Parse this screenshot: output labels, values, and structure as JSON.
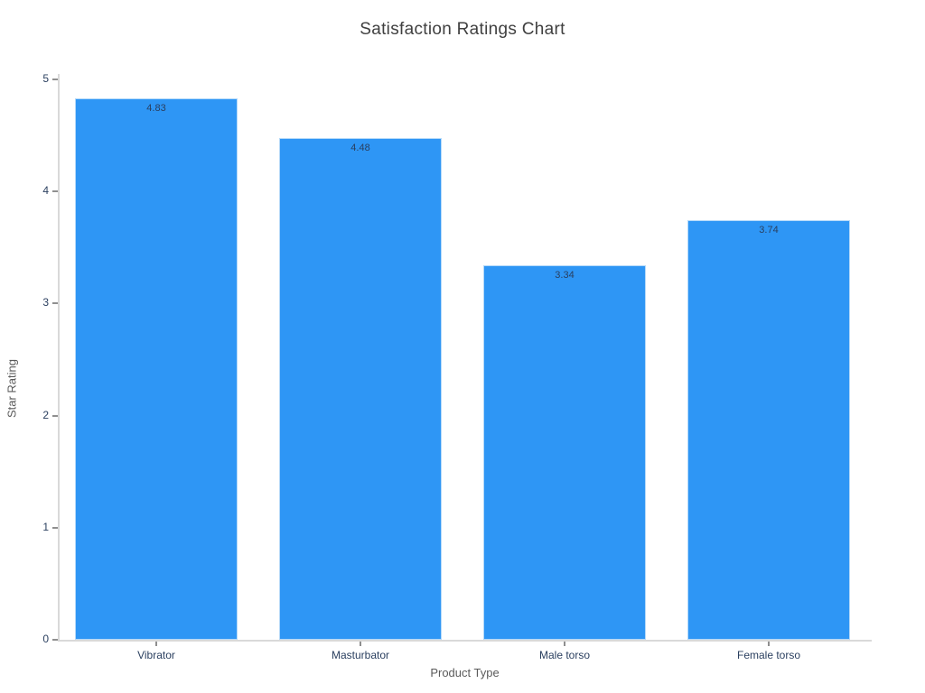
{
  "page": {
    "background": "#ffffff"
  },
  "chart_data": {
    "type": "bar",
    "title": "Satisfaction Ratings Chart",
    "categories": [
      "Vibrator",
      "Masturbator",
      "Male torso",
      "Female torso"
    ],
    "values": [
      4.83,
      4.48,
      3.34,
      3.74
    ],
    "value_labels": [
      "4.83",
      "4.48",
      "3.34",
      "3.74"
    ],
    "xlabel": "Product Type",
    "ylabel": "Star Rating",
    "ylim": [
      0,
      5
    ],
    "yticks": [
      0,
      1,
      2,
      3,
      4,
      5
    ],
    "grid": false,
    "legend": "none",
    "colors": {
      "bar": "#2e96f5",
      "axis_line": "#d9d9d9",
      "tick_mark": "#8f8f8f",
      "tick_label": "#2a3f5f",
      "value_label": "#2a3f5f",
      "axis_title": "#5b5b5b",
      "title": "#404040",
      "background": "#ffffff"
    }
  }
}
